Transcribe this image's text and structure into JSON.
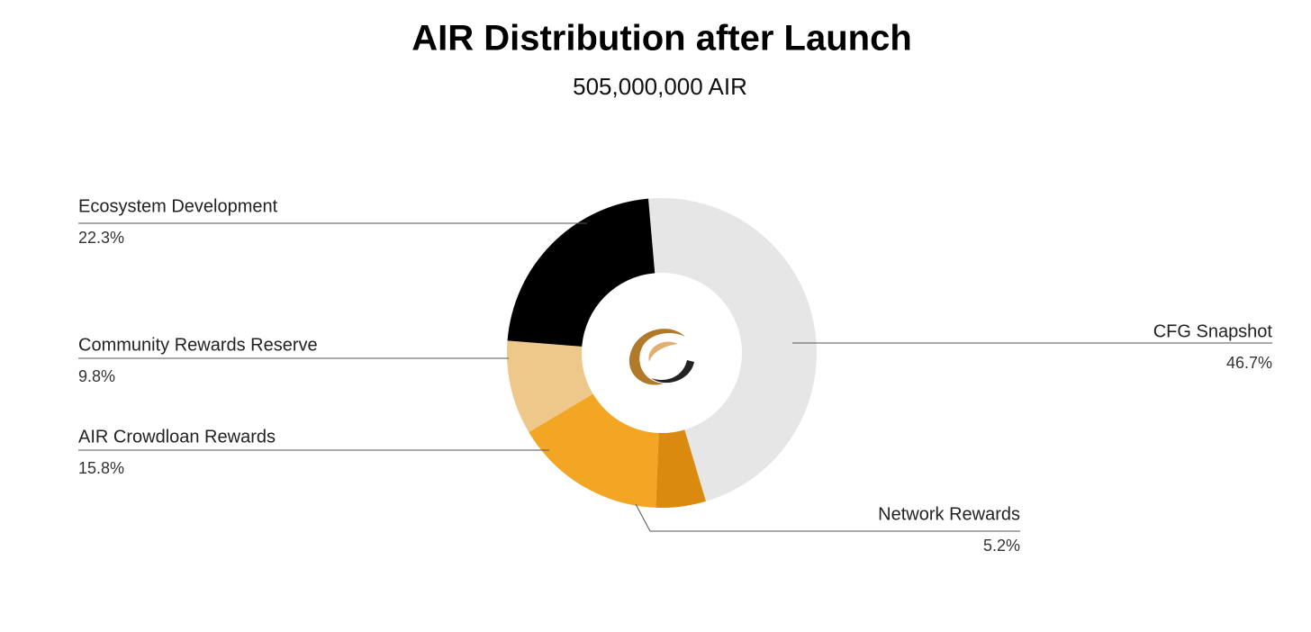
{
  "chart_data": {
    "type": "donut",
    "title": "AIR Distribution after Launch",
    "subtitle": "505,000,000 AIR",
    "categories": [
      "CFG Snapshot",
      "Network Rewards",
      "AIR Crowdloan Rewards",
      "Community Rewards Reserve",
      "Ecosystem Development"
    ],
    "values": [
      46.7,
      5.2,
      15.8,
      9.8,
      22.3
    ],
    "value_labels": [
      "46.7%",
      "5.2%",
      "15.8%",
      "9.8%",
      "22.3%"
    ],
    "colors": [
      "#e6e6e6",
      "#d98a0f",
      "#f2a623",
      "#eec78a",
      "#000000"
    ]
  }
}
